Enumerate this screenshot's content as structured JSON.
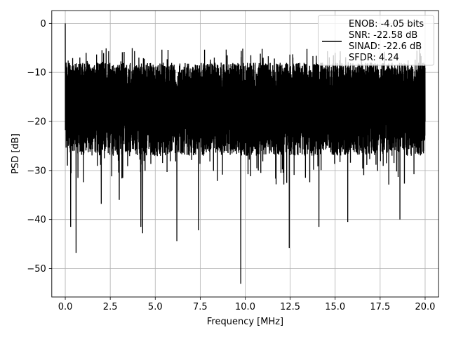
{
  "chart_data": {
    "type": "line",
    "title": "",
    "xlabel": "Frequency [MHz]",
    "ylabel": "PSD [dB]",
    "xlim": [
      -0.75,
      20.75
    ],
    "ylim": [
      -55.8,
      2.6
    ],
    "xticks": [
      0.0,
      2.5,
      5.0,
      7.5,
      10.0,
      12.5,
      15.0,
      17.5,
      20.0
    ],
    "xtick_labels": [
      "0.0",
      "2.5",
      "5.0",
      "7.5",
      "10.0",
      "12.5",
      "15.0",
      "17.5",
      "20.0"
    ],
    "yticks": [
      0,
      -10,
      -20,
      -30,
      -40,
      -50
    ],
    "ytick_labels": [
      "0",
      "−10",
      "−20",
      "−30",
      "−40",
      "−50"
    ],
    "grid": true,
    "legend_position": "top-right",
    "legend_entries": [
      "ENOB: -4.05 bits",
      "SNR: -22.58 dB",
      "SINAD: -22.6 dB",
      "SFDR: 4.24"
    ],
    "series": [
      {
        "color": "#000000",
        "style": "noise-band",
        "x_range": [
          0,
          20
        ],
        "upper_envelope_mean_db": -8,
        "lower_envelope_mean_db": -27,
        "x": [
          0.0,
          0.05,
          0.12,
          0.3,
          0.6,
          1.0,
          2.0,
          2.1,
          3.0,
          4.2,
          4.3,
          4.4,
          6.2,
          7.4,
          9.0,
          9.75,
          11.0,
          12.45,
          13.0,
          14.1,
          15.0,
          15.7,
          17.0,
          18.6,
          19.9,
          20.0
        ],
        "y": [
          0.0,
          -8.0,
          -29.0,
          -41.5,
          -46.8,
          -12.0,
          -36.8,
          -10.0,
          -36.0,
          -41.5,
          -42.8,
          -9.0,
          -44.4,
          -42.2,
          -6.5,
          -53.1,
          -7.0,
          -45.8,
          -9.0,
          -41.5,
          -6.0,
          -40.5,
          -8.0,
          -40.0,
          -14.0,
          -20.0
        ]
      }
    ]
  }
}
